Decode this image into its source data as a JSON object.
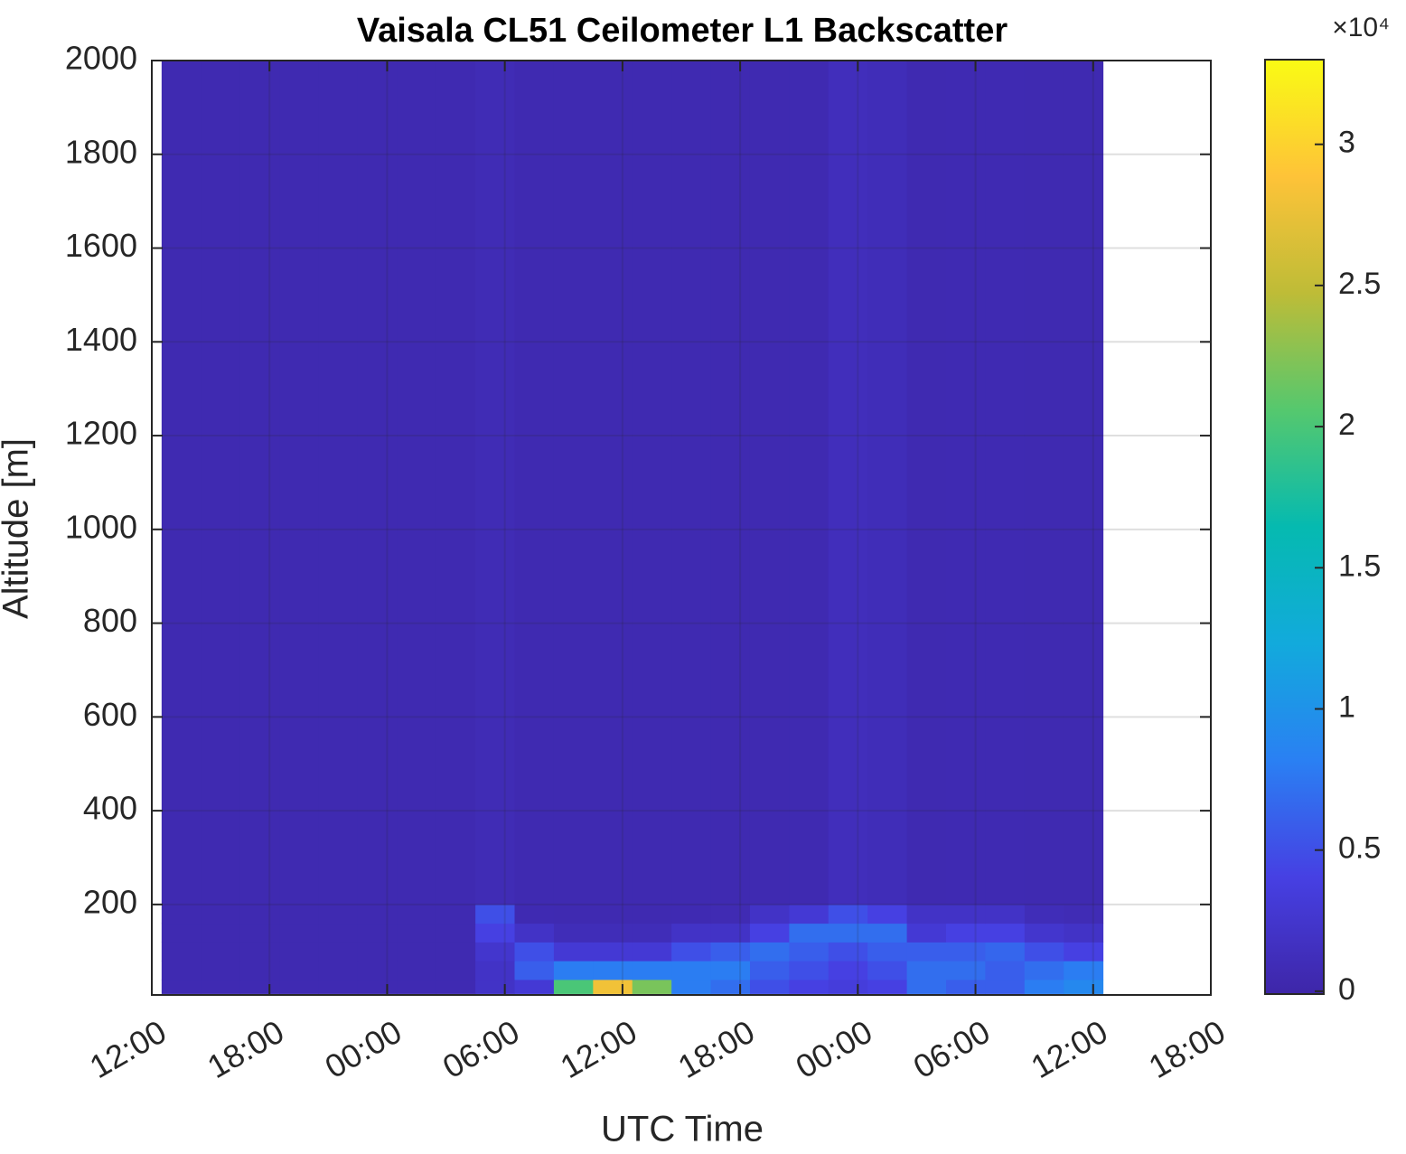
{
  "chart_data": {
    "type": "heatmap",
    "title": "Vaisala CL51 Ceilometer L1 Backscatter",
    "xlabel": "UTC Time",
    "ylabel": "Altitude [m]",
    "xlim": [
      0,
      54
    ],
    "xticks": [
      {
        "value": 0,
        "label": "12:00"
      },
      {
        "value": 6,
        "label": "18:00"
      },
      {
        "value": 12,
        "label": "00:00"
      },
      {
        "value": 18,
        "label": "06:00"
      },
      {
        "value": 24,
        "label": "12:00"
      },
      {
        "value": 30,
        "label": "18:00"
      },
      {
        "value": 36,
        "label": "00:00"
      },
      {
        "value": 42,
        "label": "06:00"
      },
      {
        "value": 48,
        "label": "12:00"
      },
      {
        "value": 54,
        "label": "18:00"
      }
    ],
    "ylim": [
      7,
      2000
    ],
    "yticks": [
      200,
      400,
      600,
      800,
      1000,
      1200,
      1400,
      1600,
      1800,
      2000
    ],
    "grid": true,
    "colormap": "parula",
    "clim": [
      -100,
      33000
    ],
    "cticks": [
      0,
      {
        "value": 5000,
        "label": "0.5"
      },
      {
        "value": 10000,
        "label": "1"
      },
      {
        "value": 15000,
        "label": "1.5"
      },
      {
        "value": 20000,
        "label": "2"
      },
      {
        "value": 25000,
        "label": "2.5"
      },
      {
        "value": 30000,
        "label": "3"
      }
    ],
    "colorbar_exponent": "×10⁴",
    "x_edges": [
      0.5,
      2.5,
      4.5,
      6.5,
      8.5,
      10.5,
      12.5,
      14.5,
      16.5,
      18.5,
      20.5,
      22.5,
      24.5,
      26.5,
      28.5,
      30.5,
      32.5,
      34.5,
      36.5,
      38.5,
      40.5,
      42.5,
      44.5,
      46.5,
      48.5
    ],
    "y_edges": [
      10,
      40,
      80,
      120,
      160,
      200,
      2000
    ],
    "z": [
      [
        600,
        600,
        600,
        600,
        600,
        600,
        600,
        600,
        2000,
        3000,
        20000,
        28000,
        22000,
        8000,
        7000,
        5000,
        4000,
        3500,
        4000,
        7000,
        6000,
        6000,
        8000,
        9000
      ],
      [
        500,
        500,
        500,
        500,
        500,
        500,
        500,
        500,
        2000,
        6000,
        8000,
        8000,
        8000,
        8000,
        8000,
        6000,
        5000,
        4000,
        5000,
        7000,
        7000,
        6000,
        7000,
        8000
      ],
      [
        500,
        500,
        500,
        500,
        500,
        500,
        500,
        500,
        2500,
        5000,
        3000,
        3000,
        3000,
        5000,
        6000,
        7000,
        6000,
        5000,
        6000,
        6000,
        6000,
        6500,
        5000,
        4000
      ],
      [
        500,
        500,
        500,
        500,
        500,
        500,
        500,
        500,
        4000,
        2000,
        1000,
        1000,
        1000,
        2000,
        2000,
        4000,
        7000,
        7000,
        7000,
        3000,
        4000,
        4000,
        2500,
        2000
      ],
      [
        500,
        500,
        500,
        500,
        500,
        500,
        500,
        500,
        5000,
        600,
        500,
        500,
        500,
        600,
        700,
        2000,
        3000,
        5000,
        4000,
        2000,
        2000,
        2000,
        1000,
        800
      ],
      [
        500,
        500,
        500,
        500,
        500,
        500,
        500,
        500,
        800,
        500,
        500,
        500,
        500,
        500,
        500,
        500,
        500,
        1200,
        1000,
        500,
        600,
        600,
        500,
        500
      ]
    ]
  }
}
